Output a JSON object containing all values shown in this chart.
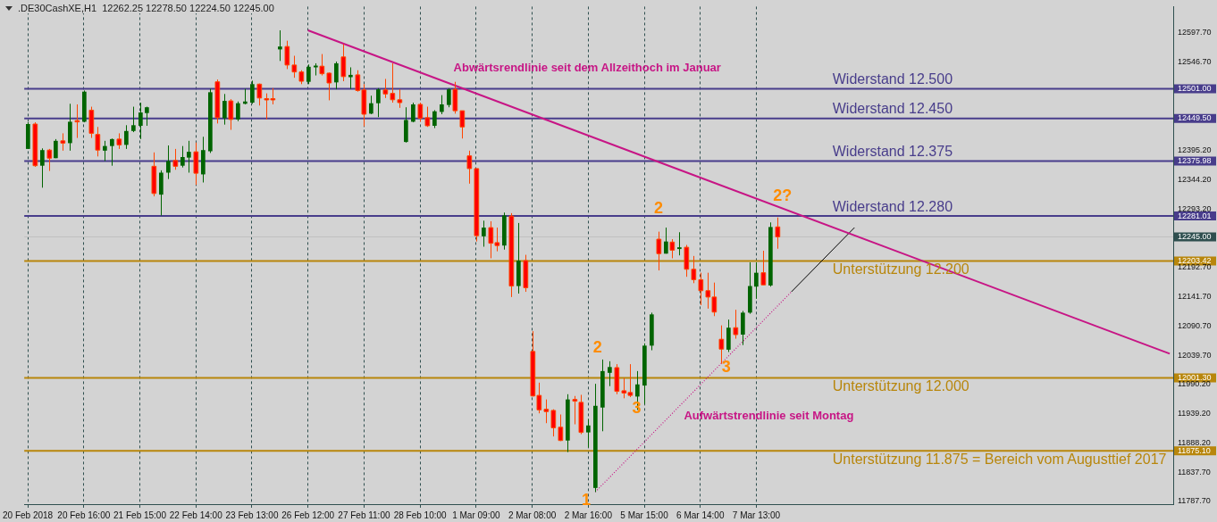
{
  "chart_data": {
    "type": "candlestick",
    "title": ".DE30CashXE,H1  12262.25 12278.50 12224.50 12245.00",
    "categories": [
      "20 Feb 2018",
      null,
      null,
      null,
      null,
      null,
      null,
      null,
      "20 Feb 16:00",
      null,
      null,
      null,
      null,
      null,
      null,
      null,
      "21 Feb 15:00",
      null,
      null,
      null,
      null,
      null,
      null,
      null,
      "22 Feb 14:00",
      null,
      null,
      null,
      null,
      null,
      null,
      null,
      "23 Feb 13:00",
      null,
      null,
      null,
      null,
      null,
      null,
      null,
      "26 Feb 12:00",
      null,
      null,
      null,
      null,
      null,
      null,
      null,
      "27 Feb 11:00",
      null,
      null,
      null,
      null,
      null,
      null,
      null,
      "28 Feb 10:00",
      null,
      null,
      null,
      null,
      null,
      null,
      null,
      "1 Mar 09:00",
      null,
      null,
      null,
      null,
      null,
      null,
      null,
      "2 Mar 08:00",
      null,
      null,
      null,
      null,
      null,
      null,
      null,
      "2 Mar 16:00",
      null,
      null,
      null,
      null,
      null,
      null,
      null,
      "5 Mar 15:00",
      null,
      null,
      null,
      null,
      null,
      null,
      null,
      "6 Mar 14:00",
      null,
      null,
      null,
      null,
      null,
      null,
      null,
      "7 Mar 13:00",
      null,
      null,
      null,
      null,
      null,
      null,
      null,
      null,
      null,
      null,
      null,
      null,
      null,
      null,
      null,
      null,
      null,
      null,
      null,
      null,
      null,
      null,
      null,
      null,
      null,
      null,
      null,
      null,
      null,
      null,
      null,
      null,
      null,
      null,
      null,
      null,
      null,
      null,
      null,
      null,
      null,
      null,
      null,
      null,
      null,
      null,
      null,
      null,
      null,
      null,
      null,
      null,
      null,
      null,
      null,
      null,
      null,
      null,
      null
    ],
    "ohlc": [
      [
        12397,
        12443,
        12397,
        12440
      ],
      [
        12440,
        12443,
        12366,
        12368
      ],
      [
        12368,
        12398,
        12330,
        12395
      ],
      [
        12395,
        12397,
        12359,
        12381
      ],
      [
        12381,
        12414,
        12381,
        12411
      ],
      [
        12411,
        12424,
        12394,
        12407
      ],
      [
        12407,
        12475,
        12394,
        12444
      ],
      [
        12446,
        12474,
        12416,
        12445
      ],
      [
        12444,
        12498,
        12443,
        12496
      ],
      [
        12464,
        12470,
        12416,
        12424
      ],
      [
        12422,
        12435,
        12384,
        12395
      ],
      [
        12394,
        12411,
        12376,
        12402
      ],
      [
        12402,
        12415,
        12368,
        12414
      ],
      [
        12414,
        12424,
        12397,
        12404
      ],
      [
        12404,
        12438,
        12397,
        12428
      ],
      [
        12428,
        12470,
        12426,
        12438
      ],
      [
        12437,
        12477,
        12414,
        12460
      ],
      [
        12459,
        12470,
        12437,
        12469
      ],
      [
        12367,
        12391,
        12315,
        12320
      ],
      [
        12318,
        12360,
        12282,
        12356
      ],
      [
        12356,
        12403,
        12345,
        12376
      ],
      [
        12377,
        12397,
        12361,
        12367
      ],
      [
        12368,
        12402,
        12365,
        12383
      ],
      [
        12382,
        12411,
        12356,
        12392
      ],
      [
        12392,
        12408,
        12335,
        12355
      ],
      [
        12353,
        12418,
        12339,
        12395
      ],
      [
        12393,
        12501,
        12390,
        12495
      ],
      [
        12513,
        12517,
        12441,
        12451
      ],
      [
        12450,
        12492,
        12439,
        12480
      ],
      [
        12480,
        12483,
        12430,
        12448
      ],
      [
        12448,
        12479,
        12445,
        12476
      ],
      [
        12475,
        12501,
        12474,
        12479
      ],
      [
        12477,
        12515,
        12475,
        12509
      ],
      [
        12509,
        12510,
        12472,
        12485
      ],
      [
        12484,
        12493,
        12448,
        12483
      ],
      [
        12484,
        12502,
        12474,
        12483
      ],
      [
        12569,
        12602,
        12549,
        12574
      ],
      [
        12574,
        12584,
        12535,
        12542
      ],
      [
        12542,
        12558,
        12520,
        12530
      ],
      [
        12530,
        12533,
        12509,
        12514
      ],
      [
        12513,
        12543,
        12509,
        12539
      ],
      [
        12538,
        12545,
        12524,
        12541
      ],
      [
        12540,
        12561,
        12524,
        12527
      ],
      [
        12528,
        12529,
        12481,
        12511
      ],
      [
        12512,
        12548,
        12500,
        12545
      ],
      [
        12556,
        12578,
        12514,
        12522
      ],
      [
        12521,
        12538,
        12501,
        12525
      ],
      [
        12525,
        12533,
        12496,
        12498
      ],
      [
        12499,
        12509,
        12436,
        12457
      ],
      [
        12458,
        12489,
        12457,
        12476
      ],
      [
        12476,
        12502,
        12452,
        12500
      ],
      [
        12499,
        12518,
        12485,
        12492
      ],
      [
        12493,
        12545,
        12477,
        12482
      ],
      [
        12482,
        12500,
        12468,
        12477
      ],
      [
        12409,
        12469,
        12408,
        12447
      ],
      [
        12444,
        12477,
        12443,
        12474
      ],
      [
        12474,
        12477,
        12444,
        12450
      ],
      [
        12451,
        12470,
        12435,
        12437
      ],
      [
        12437,
        12464,
        12433,
        12462
      ],
      [
        12461,
        12490,
        12457,
        12474
      ],
      [
        12473,
        12502,
        12469,
        12500
      ],
      [
        12500,
        12513,
        12458,
        12463
      ],
      [
        12463,
        12463,
        12415,
        12435
      ],
      [
        12385,
        12394,
        12337,
        12363
      ],
      [
        12363,
        12363,
        12237,
        12247
      ],
      [
        12246,
        12273,
        12228,
        12261
      ],
      [
        12261,
        12272,
        12208,
        12234
      ],
      [
        12235,
        12261,
        12220,
        12230
      ],
      [
        12230,
        12287,
        12223,
        12282
      ],
      [
        12281,
        12286,
        12141,
        12160
      ],
      [
        12160,
        12269,
        12147,
        12204
      ],
      [
        12204,
        12214,
        12150,
        12157
      ],
      [
        12047,
        12082,
        11969,
        11970
      ],
      [
        11971,
        11993,
        11940,
        11946
      ],
      [
        11947,
        11964,
        11923,
        11943
      ],
      [
        11945,
        11947,
        11900,
        11915
      ],
      [
        11916,
        11938,
        11892,
        11893
      ],
      [
        11893,
        11973,
        11873,
        11964
      ],
      [
        11964,
        11970,
        11921,
        11961
      ],
      [
        11959,
        11972,
        11904,
        11907
      ],
      [
        11907,
        11930,
        11881,
        11919
      ],
      [
        11811,
        11991,
        11804,
        11953
      ],
      [
        11950,
        12033,
        11909,
        12013
      ],
      [
        12010,
        12030,
        11987,
        12020
      ],
      [
        12019,
        12025,
        11973,
        11978
      ],
      [
        11979,
        12001,
        11966,
        11975
      ],
      [
        11976,
        12025,
        11968,
        11971
      ],
      [
        11969,
        12013,
        11946,
        11990
      ],
      [
        11988,
        12061,
        11956,
        12057
      ],
      [
        12057,
        12114,
        12049,
        12111
      ],
      [
        12241,
        12254,
        12187,
        12216
      ],
      [
        12216,
        12261,
        12216,
        12237
      ],
      [
        12236,
        12241,
        12208,
        12222
      ],
      [
        12224,
        12253,
        12213,
        12227
      ],
      [
        12227,
        12231,
        12176,
        12189
      ],
      [
        12189,
        12212,
        12165,
        12171
      ],
      [
        12171,
        12183,
        12127,
        12152
      ],
      [
        12152,
        12183,
        12121,
        12141
      ],
      [
        12141,
        12166,
        12108,
        12115
      ],
      [
        12068,
        12092,
        12026,
        12051
      ],
      [
        12050,
        12102,
        12046,
        12088
      ],
      [
        12088,
        12119,
        12069,
        12076
      ],
      [
        12076,
        12117,
        12058,
        12114
      ],
      [
        12114,
        12201,
        12112,
        12160
      ],
      [
        12159,
        12201,
        12138,
        12183
      ],
      [
        12183,
        12221,
        12162,
        12162
      ],
      [
        12161,
        12270,
        12159,
        12262
      ],
      [
        12262.25,
        12278.5,
        12224.5,
        12245
      ],
      null,
      null,
      null,
      null,
      null,
      null,
      null,
      null,
      null,
      null,
      null,
      null,
      null,
      null,
      null,
      null,
      null,
      null,
      null,
      null,
      null,
      null,
      null,
      null,
      null,
      null,
      null,
      null,
      null,
      null,
      null,
      null,
      null,
      null,
      null,
      null,
      null,
      null,
      null,
      null,
      null,
      null,
      null,
      null,
      null,
      null,
      null,
      null,
      null,
      null,
      null,
      null,
      null,
      null,
      null,
      null
    ],
    "colors": [
      "#006400",
      "#ff0000",
      "#006400",
      "#ff0000",
      "#006400",
      "#ff0000",
      "#006400",
      "#ff0000",
      "#006400",
      "#ff0000",
      "#ff0000",
      "#006400",
      "#006400",
      "#ff0000",
      "#006400",
      "#006400",
      "#006400",
      "#006400",
      "#ff0000",
      "#006400",
      "#006400",
      "#ff0000",
      "#006400",
      "#006400",
      "#ff0000",
      "#006400",
      "#006400",
      "#ff0000",
      "#006400",
      "#ff0000",
      "#006400",
      "#006400",
      "#006400",
      "#ff0000",
      "#ff0000",
      "#ff0000",
      "#006400",
      "#ff0000",
      "#ff0000",
      "#ff0000",
      "#006400",
      "#006400",
      "#ff0000",
      "#ff0000",
      "#006400",
      "#ff0000",
      "#006400",
      "#ff0000",
      "#ff0000",
      "#006400",
      "#006400",
      "#ff0000",
      "#ff0000",
      "#ff0000",
      "#006400",
      "#006400",
      "#ff0000",
      "#ff0000",
      "#006400",
      "#006400",
      "#006400",
      "#ff0000",
      "#ff0000",
      "#ff0000",
      "#ff0000",
      "#006400",
      "#ff0000",
      "#ff0000",
      "#006400",
      "#ff0000",
      "#006400",
      "#ff0000",
      "#ff0000",
      "#ff0000",
      "#ff0000",
      "#ff0000",
      "#ff0000",
      "#006400",
      "#ff0000",
      "#ff0000",
      "#006400",
      "#006400",
      "#006400",
      "#006400",
      "#ff0000",
      "#ff0000",
      "#ff0000",
      "#006400",
      "#006400",
      "#006400",
      "#ff0000",
      "#006400",
      "#ff0000",
      "#006400",
      "#ff0000",
      "#ff0000",
      "#ff0000",
      "#ff0000",
      "#ff0000",
      "#ff0000",
      "#006400",
      "#ff0000",
      "#006400",
      "#006400",
      "#006400",
      "#ff0000",
      "#006400",
      "#ff0000",
      null,
      null,
      null,
      null,
      null,
      null,
      null,
      null,
      null,
      null,
      null,
      null,
      null,
      null,
      null,
      null,
      null,
      null,
      null,
      null,
      null,
      null,
      null,
      null,
      null,
      null,
      null,
      null,
      null,
      null,
      null,
      null,
      null,
      null,
      null,
      null,
      null,
      null,
      null,
      null,
      null,
      null,
      null,
      null,
      null,
      null,
      null,
      null,
      null,
      null,
      null,
      null,
      null,
      null,
      null,
      null
    ],
    "series": [
      {
        "type": "line",
        "color": "#c71585",
        "line_style": "solid",
        "values": [
          null,
          null,
          null,
          null,
          null,
          null,
          null,
          null,
          null,
          null,
          null,
          null,
          null,
          null,
          null,
          null,
          null,
          null,
          null,
          null,
          null,
          null,
          null,
          null,
          null,
          null,
          null,
          null,
          null,
          null,
          null,
          null,
          null,
          null,
          null,
          null,
          null,
          null,
          null,
          null,
          12602,
          null,
          null,
          null,
          null,
          null,
          null,
          null,
          null,
          null,
          null,
          null,
          null,
          null,
          null,
          null,
          null,
          null,
          null,
          null,
          null,
          null,
          null,
          null,
          null,
          null,
          null,
          null,
          null,
          null,
          null,
          null,
          null,
          null,
          null,
          null,
          null,
          null,
          null,
          null,
          null,
          null,
          null,
          null,
          null,
          null,
          null,
          null,
          null,
          null,
          null,
          null,
          null,
          null,
          null,
          null,
          null,
          null,
          null,
          null,
          null,
          null,
          null,
          null,
          null,
          null,
          null,
          null,
          null,
          null,
          null,
          null,
          null,
          null,
          null,
          null,
          null,
          null,
          null,
          null,
          null,
          null,
          null,
          null,
          null,
          null,
          null,
          null,
          null,
          null,
          null,
          null,
          null,
          null,
          null,
          null,
          null,
          null,
          null,
          null,
          null,
          null,
          null,
          null,
          null,
          null,
          null,
          null,
          null,
          null,
          null,
          null,
          null,
          null,
          null,
          null,
          null,
          null,
          null,
          null,
          null,
          null,
          null,
          12043
        ]
      },
      {
        "type": "line",
        "color": "#c71585",
        "line_style": "dotted",
        "values": [
          null,
          null,
          null,
          null,
          null,
          null,
          null,
          null,
          null,
          null,
          null,
          null,
          null,
          null,
          null,
          null,
          null,
          null,
          null,
          null,
          null,
          null,
          null,
          null,
          null,
          null,
          null,
          null,
          null,
          null,
          null,
          null,
          null,
          null,
          null,
          null,
          null,
          null,
          null,
          null,
          null,
          null,
          null,
          null,
          null,
          null,
          null,
          null,
          null,
          null,
          null,
          null,
          null,
          null,
          null,
          null,
          null,
          null,
          null,
          null,
          null,
          null,
          null,
          null,
          null,
          null,
          null,
          null,
          null,
          null,
          null,
          null,
          null,
          null,
          null,
          null,
          null,
          null,
          null,
          null,
          null,
          11804,
          null,
          null,
          null,
          null,
          null,
          null,
          null,
          null,
          null,
          null,
          null,
          null,
          null,
          null,
          null,
          null,
          null,
          null,
          null,
          null,
          null,
          null,
          null,
          null,
          null,
          null,
          null,
          12150,
          null,
          null,
          null,
          null,
          null,
          null,
          null,
          null,
          null,
          null,
          null,
          null,
          null,
          null,
          null,
          null,
          null,
          null,
          null,
          null,
          null,
          null,
          null,
          null,
          null,
          null,
          null,
          null,
          null,
          null,
          null,
          null,
          null,
          null,
          null,
          null,
          null,
          null,
          null,
          null,
          null,
          null,
          null,
          null,
          null,
          null,
          null,
          null,
          null,
          null,
          null,
          null,
          null,
          null
        ]
      },
      {
        "type": "line",
        "color": "#000000",
        "line_style": "solid",
        "values": [
          null,
          null,
          null,
          null,
          null,
          null,
          null,
          null,
          null,
          null,
          null,
          null,
          null,
          null,
          null,
          null,
          null,
          null,
          null,
          null,
          null,
          null,
          null,
          null,
          null,
          null,
          null,
          null,
          null,
          null,
          null,
          null,
          null,
          null,
          null,
          null,
          null,
          null,
          null,
          null,
          null,
          null,
          null,
          null,
          null,
          null,
          null,
          null,
          null,
          null,
          null,
          null,
          null,
          null,
          null,
          null,
          null,
          null,
          null,
          null,
          null,
          null,
          null,
          null,
          null,
          null,
          null,
          null,
          null,
          null,
          null,
          null,
          null,
          null,
          null,
          null,
          null,
          null,
          null,
          null,
          null,
          null,
          null,
          null,
          null,
          null,
          null,
          null,
          null,
          null,
          null,
          null,
          null,
          null,
          null,
          null,
          null,
          null,
          null,
          null,
          null,
          null,
          null,
          null,
          null,
          null,
          null,
          null,
          null,
          12150,
          null,
          null,
          null,
          null,
          null,
          null,
          null,
          null,
          12261,
          null,
          null,
          null,
          null,
          null,
          null,
          null,
          null,
          null,
          null,
          null,
          null,
          null,
          null,
          null,
          null,
          null,
          null,
          null,
          null,
          null,
          null,
          null,
          null,
          null,
          null,
          null,
          null,
          null,
          null,
          null,
          null,
          null,
          null,
          null,
          null,
          null,
          null,
          null,
          null,
          null,
          null,
          null,
          null,
          null
        ]
      }
    ],
    "ylim": [
      11783,
      12643
    ],
    "yticks": [
      {
        "value": 12597.7,
        "label": "12597.70"
      },
      {
        "value": 12546.7,
        "label": "12546.70"
      },
      {
        "value": 12501,
        "label": "12501.00"
      },
      {
        "value": 12449.5,
        "label": "12449.50"
      },
      {
        "value": 12395.2,
        "label": "12395.20"
      },
      {
        "value": 12375.98,
        "label": "12375.98"
      },
      {
        "value": 12344.2,
        "label": "12344.20"
      },
      {
        "value": 12293.2,
        "label": "12293.20"
      },
      {
        "value": 12281.01,
        "label": "12281.01"
      },
      {
        "value": 12245,
        "label": "12245.00"
      },
      {
        "value": 12203.42,
        "label": "12203.42"
      },
      {
        "value": 12192.7,
        "label": "12192.70"
      },
      {
        "value": 12141.7,
        "label": "12141.70"
      },
      {
        "value": 12090.7,
        "label": "12090.70"
      },
      {
        "value": 12039.7,
        "label": "12039.70"
      },
      {
        "value": 12001.3,
        "label": "12001.30"
      },
      {
        "value": 11990.2,
        "label": "11990.20"
      },
      {
        "value": 11939.2,
        "label": "11939.20"
      },
      {
        "value": 11888.2,
        "label": "11888.20"
      },
      {
        "value": 11875.1,
        "label": "11875.10"
      },
      {
        "value": 11837.7,
        "label": "11837.70"
      },
      {
        "value": 11787.7,
        "label": "11787.70"
      }
    ],
    "grid": "x",
    "ref_lines": [
      {
        "axis": "y",
        "value": 12501,
        "label": "Widerstand 12.500",
        "color": "#483d8b"
      },
      {
        "axis": "y",
        "value": 12449.5,
        "label": "Widerstand 12.450",
        "color": "#483d8b"
      },
      {
        "axis": "y",
        "value": 12375.98,
        "label": "Widerstand 12.375",
        "color": "#483d8b"
      },
      {
        "axis": "y",
        "value": 12281.01,
        "label": "Widerstand 12.280",
        "color": "#483d8b"
      },
      {
        "axis": "y",
        "value": 12203.42,
        "label": "Unterstützung 12.200",
        "color": "#b8860b"
      },
      {
        "axis": "y",
        "value": 12001.3,
        "label": "Unterstützung 12.000",
        "color": "#b8860b"
      },
      {
        "axis": "y",
        "value": 11875.1,
        "label": "Unterstützung 11.875 = Bereich vom Augusttief 2017",
        "color": "#b8860b"
      },
      {
        "axis": "y",
        "value": 12245,
        "color": "#c0c0c0"
      }
    ],
    "annotations": [
      "1",
      "2",
      "3",
      "2",
      "3",
      "2?",
      "Abwärtsrendlinie seit dem Allzeithoch im Januar",
      "Aufwärtstrendlinie seit Montag"
    ]
  }
}
